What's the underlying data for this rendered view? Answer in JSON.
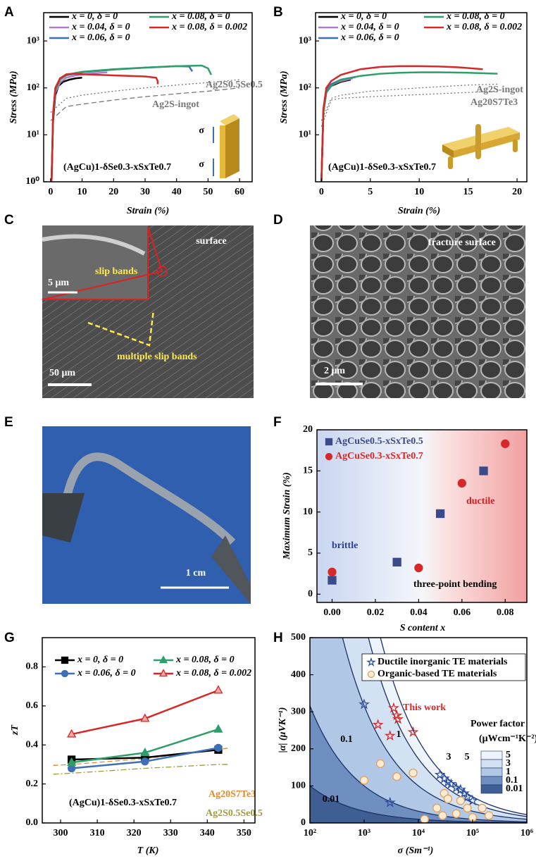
{
  "chart_data": [
    {
      "panel": "A",
      "type": "line",
      "y_scale": "log",
      "xlabel": "Strain (%)",
      "ylabel": "Stress (MPa)",
      "xlim": [
        -2.2,
        64
      ],
      "xticks": [
        0,
        10,
        20,
        30,
        40,
        50,
        60
      ],
      "ylim": [
        1,
        4000
      ],
      "yticks": [
        {
          "value": 1,
          "label": "10⁰"
        },
        {
          "value": 10,
          "label": "10¹"
        },
        {
          "value": 100,
          "label": "10²"
        },
        {
          "value": 1000,
          "label": "10³"
        }
      ],
      "series": [
        {
          "name": "x = 0, δ = 0",
          "color": "#000000",
          "x": [
            0.3,
            0.8,
            1.5,
            2.5,
            4,
            6,
            8,
            10
          ],
          "values": [
            1,
            20,
            70,
            110,
            135,
            150,
            160,
            165
          ]
        },
        {
          "name": "x = 0.04, δ = 0",
          "color": "#b07cc6",
          "x": [
            0.3,
            0.8,
            1.5,
            3,
            5,
            8,
            12,
            16,
            18
          ],
          "values": [
            1,
            25,
            80,
            130,
            165,
            185,
            200,
            210,
            215
          ]
        },
        {
          "name": "x = 0.06, δ = 0",
          "color": "#3f6fb5",
          "x": [
            0.3,
            0.8,
            1.5,
            3,
            5,
            10,
            20,
            30,
            40,
            44,
            45
          ],
          "values": [
            1,
            25,
            90,
            150,
            185,
            215,
            245,
            270,
            290,
            285,
            225
          ]
        },
        {
          "name": "x = 0.08, δ = 0",
          "color": "#2e9e6a",
          "x": [
            0.3,
            0.8,
            1.5,
            3,
            5,
            10,
            20,
            30,
            40,
            48,
            50,
            51
          ],
          "values": [
            1,
            25,
            90,
            150,
            190,
            220,
            250,
            270,
            290,
            300,
            260,
            190
          ]
        },
        {
          "name": "x = 0.08, δ = 0.002",
          "color": "#d62828",
          "x": [
            0.3,
            0.8,
            1.5,
            3,
            5,
            7,
            10,
            20,
            30,
            33.5,
            34,
            34
          ],
          "values": [
            1,
            30,
            100,
            160,
            195,
            200,
            195,
            185,
            175,
            165,
            140,
            120
          ]
        }
      ],
      "reference_curves": [
        {
          "name": "Ag2S0.5Se0.5",
          "color": "#777777",
          "dash": "dotted",
          "x": [
            0,
            5,
            10,
            20,
            30,
            40,
            50,
            60
          ],
          "values": [
            30,
            60,
            70,
            85,
            100,
            115,
            130,
            150
          ]
        },
        {
          "name": "Ag2S-ingot",
          "color": "#777777",
          "dash": "dashed",
          "x": [
            0,
            5,
            10,
            20,
            30,
            40,
            50,
            60
          ],
          "values": [
            20,
            40,
            45,
            55,
            65,
            75,
            85,
            100
          ]
        }
      ],
      "annotations": [
        "(AgCu)1-δSe0.3-xSxTe0.7",
        "σ",
        "σ"
      ]
    },
    {
      "panel": "B",
      "type": "line",
      "y_scale": "log",
      "xlabel": "Strain (%)",
      "ylabel": "Stress (MPa)",
      "xlim": [
        -0.6,
        21
      ],
      "xticks": [
        0,
        5,
        10,
        15,
        20
      ],
      "ylim": [
        1,
        4000
      ],
      "yticks": [
        {
          "value": 10,
          "label": "10¹"
        },
        {
          "value": 100,
          "label": "10²"
        },
        {
          "value": 1000,
          "label": "10³"
        }
      ],
      "series": [
        {
          "name": "x = 0, δ = 0",
          "color": "#000000",
          "x": [
            0,
            0.2,
            0.5,
            1,
            2,
            3
          ],
          "values": [
            1,
            30,
            80,
            110,
            135,
            150
          ]
        },
        {
          "name": "x = 0.04, δ = 0",
          "color": "#b07cc6",
          "x": [
            0,
            0.2,
            0.5,
            1,
            2,
            3.2
          ],
          "values": [
            1,
            30,
            85,
            115,
            140,
            160
          ]
        },
        {
          "name": "x = 0.06, δ = 0",
          "color": "#3f6fb5",
          "x": [
            0,
            0.2,
            0.5,
            1,
            2,
            3.5
          ],
          "values": [
            1,
            35,
            90,
            120,
            150,
            170
          ]
        },
        {
          "name": "x = 0.08, δ = 0",
          "color": "#2e9e6a",
          "x": [
            0,
            0.2,
            0.5,
            1,
            2,
            4,
            6,
            8,
            10,
            12,
            15,
            18
          ],
          "values": [
            1,
            30,
            80,
            110,
            150,
            180,
            200,
            210,
            215,
            215,
            210,
            200
          ]
        },
        {
          "name": "x = 0.08, δ = 0.002",
          "color": "#d62828",
          "x": [
            0,
            0.2,
            0.5,
            1,
            2,
            4,
            6,
            8,
            10,
            12,
            14,
            16.5
          ],
          "values": [
            1,
            35,
            100,
            140,
            190,
            250,
            280,
            290,
            290,
            285,
            275,
            250
          ]
        }
      ],
      "reference_curves": [
        {
          "name": "Ag2S-ingot",
          "color": "#777777",
          "dash": "dotted",
          "x": [
            0,
            1,
            2,
            5,
            10,
            15,
            18
          ],
          "values": [
            20,
            60,
            70,
            85,
            100,
            115,
            120
          ]
        },
        {
          "name": "Ag20S7Te3",
          "color": "#777777",
          "dash": "dotted",
          "x": [
            0,
            1,
            2,
            5,
            10,
            15,
            18
          ],
          "values": [
            15,
            55,
            60,
            65,
            72,
            80,
            85
          ]
        }
      ],
      "annotations": [
        "(AgCu)1-δSe0.3-xSxTe0.7"
      ]
    },
    {
      "panel": "F",
      "type": "scatter",
      "xlabel": "S content x",
      "ylabel": "Maximum Strain (%)",
      "xlim": [
        -0.007,
        0.09
      ],
      "xticks": [
        {
          "value": 0,
          "label": "0.00"
        },
        0.02,
        0.04,
        0.06,
        0.08
      ],
      "ylim": [
        -1,
        20
      ],
      "yticks": [
        0,
        5,
        10,
        15,
        20
      ],
      "series": [
        {
          "name": "AgCuSe0.5-xSxTe0.5",
          "color": "#3b4a8a",
          "marker": "square",
          "fill": "#3b4a8a",
          "x": [
            0,
            0.03,
            0.05,
            0.07
          ],
          "values": [
            1.7,
            3.9,
            9.8,
            15.0
          ]
        },
        {
          "name": "AgCuSe0.3-xSxTe0.7",
          "color": "#d62828",
          "marker": "circle",
          "fill": "#d62828",
          "x": [
            0,
            0.04,
            0.06,
            0.08
          ],
          "values": [
            2.7,
            3.2,
            13.5,
            18.3
          ]
        }
      ],
      "annotations": [
        "brittle",
        "ductile",
        "three-point bending"
      ]
    },
    {
      "panel": "G",
      "type": "line",
      "xlabel": "T (K)",
      "ylabel": "zT",
      "xlim": [
        295,
        353
      ],
      "xticks": [
        300,
        310,
        320,
        330,
        340,
        350
      ],
      "ylim": [
        0,
        0.95
      ],
      "yticks": [
        {
          "value": 0,
          "label": "0.0"
        },
        0.2,
        0.4,
        0.6,
        0.8
      ],
      "x": [
        303,
        323,
        343
      ],
      "series": [
        {
          "name": "x = 0, δ = 0",
          "color": "#000000",
          "marker": "square",
          "fill": "#000000",
          "values": [
            0.325,
            0.335,
            0.375
          ]
        },
        {
          "name": "x = 0.06, δ = 0",
          "color": "#3f6fb5",
          "marker": "circle",
          "fill": "#3f6fb5",
          "values": [
            0.28,
            0.315,
            0.385
          ]
        },
        {
          "name": "x = 0.08, δ = 0",
          "color": "#2e9e6a",
          "marker": "triangle",
          "fill": "#2e9e6a",
          "values": [
            0.31,
            0.36,
            0.48
          ]
        },
        {
          "name": "x = 0.08, δ = 0.002",
          "color": "#d62828",
          "marker": "triangle",
          "fill": "#f2a3a3",
          "values": [
            0.455,
            0.535,
            0.68
          ]
        }
      ],
      "reference_curves": [
        {
          "name": "Ag20S7Te3",
          "color": "#e08a2c",
          "dash": "dashed",
          "x": [
            298,
            303,
            323,
            343,
            346
          ],
          "values": [
            0.295,
            0.3,
            0.33,
            0.375,
            0.385
          ]
        },
        {
          "name": "Ag2S0.5Se0.5",
          "color": "#a39a3a",
          "dash": "dashdot",
          "x": [
            298,
            303,
            323,
            343,
            346
          ],
          "values": [
            0.25,
            0.255,
            0.28,
            0.3,
            0.3
          ]
        }
      ],
      "annotations": [
        "(AgCu)1-δSe0.3-xSxTe0.7"
      ]
    },
    {
      "panel": "H",
      "type": "scatter",
      "x_scale": "log",
      "xlabel": "σ (Sm⁻¹)",
      "ylabel": "|α| (μVK⁻¹)",
      "xlim": [
        100,
        1000000
      ],
      "xticks": [
        {
          "value": 100,
          "label": "10²"
        },
        {
          "value": 1000,
          "label": "10³"
        },
        {
          "value": 10000,
          "label": "10⁴"
        },
        {
          "value": 100000,
          "label": "10⁵"
        },
        {
          "value": 1000000,
          "label": "10⁶"
        }
      ],
      "ylim": [
        0,
        500
      ],
      "yticks": [
        0,
        100,
        200,
        300,
        400,
        500
      ],
      "contour_levels": [
        5,
        3,
        1,
        0.1,
        0.01
      ],
      "contour_colors": [
        "#eef4fb",
        "#d3e2f3",
        "#b0c8e6",
        "#6f8fc0",
        "#3f5f94"
      ],
      "series": [
        {
          "name": "Ductile inorganic TE materials",
          "color": "#2c4fa0",
          "marker": "star",
          "fill": "none",
          "x": [
            1000,
            3000,
            25000,
            30000,
            35000,
            40000,
            50000,
            60000,
            70000,
            80000,
            100000
          ],
          "values": [
            320,
            55,
            130,
            120,
            110,
            105,
            95,
            90,
            80,
            70,
            60
          ]
        },
        {
          "name": "Organic-based TE materials",
          "color": "#e0a060",
          "marker": "circle",
          "fill": "#fdebd3",
          "x": [
            1000,
            2000,
            4000,
            8000,
            13000,
            22000,
            28000,
            30000,
            35000,
            50000,
            60000,
            80000,
            100000,
            150000,
            200000
          ],
          "values": [
            115,
            160,
            125,
            135,
            10,
            40,
            20,
            80,
            65,
            25,
            60,
            40,
            15,
            40,
            20
          ]
        }
      ],
      "highlight": {
        "name": "This work",
        "color": "#d62828",
        "marker": "star",
        "fill": "none",
        "x": [
          1800,
          3000,
          3500,
          4000,
          4200,
          8000
        ],
        "values": [
          265,
          235,
          310,
          290,
          280,
          245
        ]
      },
      "annotations": [
        "Power factor",
        "(μWcm⁻¹K⁻²)"
      ]
    }
  ],
  "images": [
    {
      "panel": "C",
      "labels": [
        "surface",
        "slip bands",
        "5 μm",
        "multiple slip bands",
        "50 μm"
      ]
    },
    {
      "panel": "D",
      "labels": [
        "fracture surface",
        "2 μm"
      ]
    },
    {
      "panel": "E",
      "labels": [
        "1 cm"
      ]
    }
  ]
}
